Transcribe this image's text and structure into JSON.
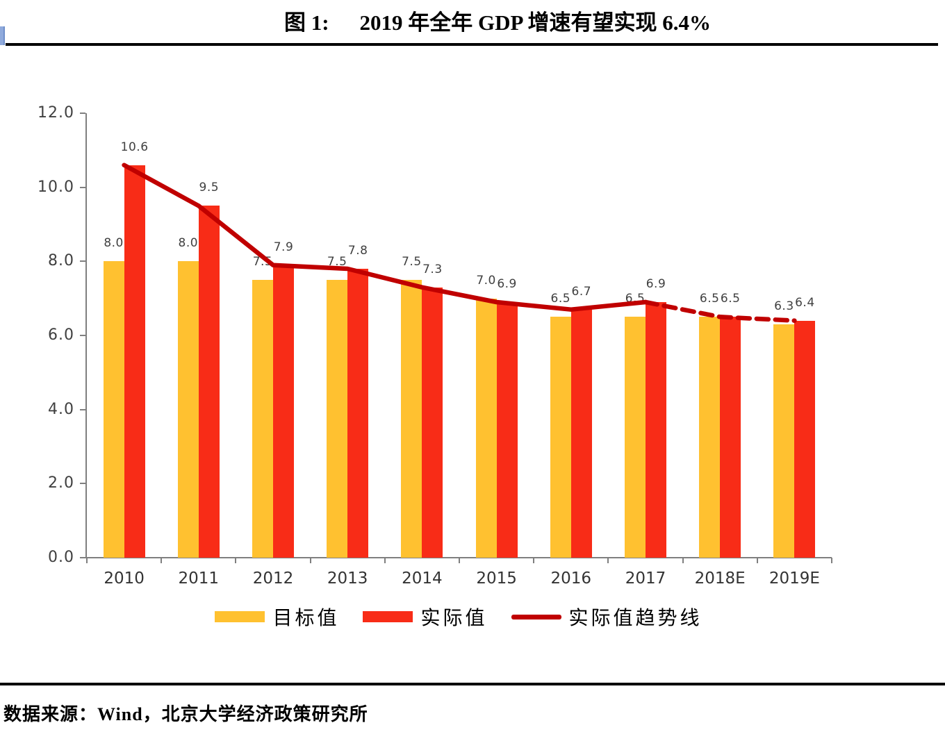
{
  "header": {
    "figure_label": "图 1:",
    "title": "2019 年全年 GDP 增速有望实现 6.4%"
  },
  "footer": {
    "source_note": "数据来源：Wind，北京大学经济政策研究所"
  },
  "chart_data": {
    "type": "bar",
    "title": "图 1: 2019 年全年 GDP 增速有望实现 6.4%",
    "categories": [
      "2010",
      "2011",
      "2012",
      "2013",
      "2014",
      "2015",
      "2016",
      "2017",
      "2018E",
      "2019E"
    ],
    "series": [
      {
        "name": "目标值",
        "type": "bar",
        "color": "#FFC130",
        "values": [
          8.0,
          8.0,
          7.5,
          7.5,
          7.5,
          7.0,
          6.5,
          6.5,
          6.5,
          6.3
        ]
      },
      {
        "name": "实际值",
        "type": "bar",
        "color": "#F82C17",
        "values": [
          10.6,
          9.5,
          7.9,
          7.8,
          7.3,
          6.9,
          6.7,
          6.9,
          6.5,
          6.4
        ]
      },
      {
        "name": "实际值趋势线",
        "type": "line",
        "color": "#C00000",
        "values": [
          10.6,
          9.5,
          7.9,
          7.8,
          7.3,
          6.9,
          6.7,
          6.9,
          6.5,
          6.4
        ],
        "dashed_from_index": 7
      }
    ],
    "ylim": [
      0,
      12
    ],
    "ytick_interval": 2,
    "ytick_labels": [
      "0.0",
      "2.0",
      "4.0",
      "6.0",
      "8.0",
      "10.0",
      "12.0"
    ],
    "grid": false,
    "data_labels": true,
    "legend_position": "bottom",
    "axis_color": "#7F7F7F",
    "data_label_color": "#404040"
  }
}
